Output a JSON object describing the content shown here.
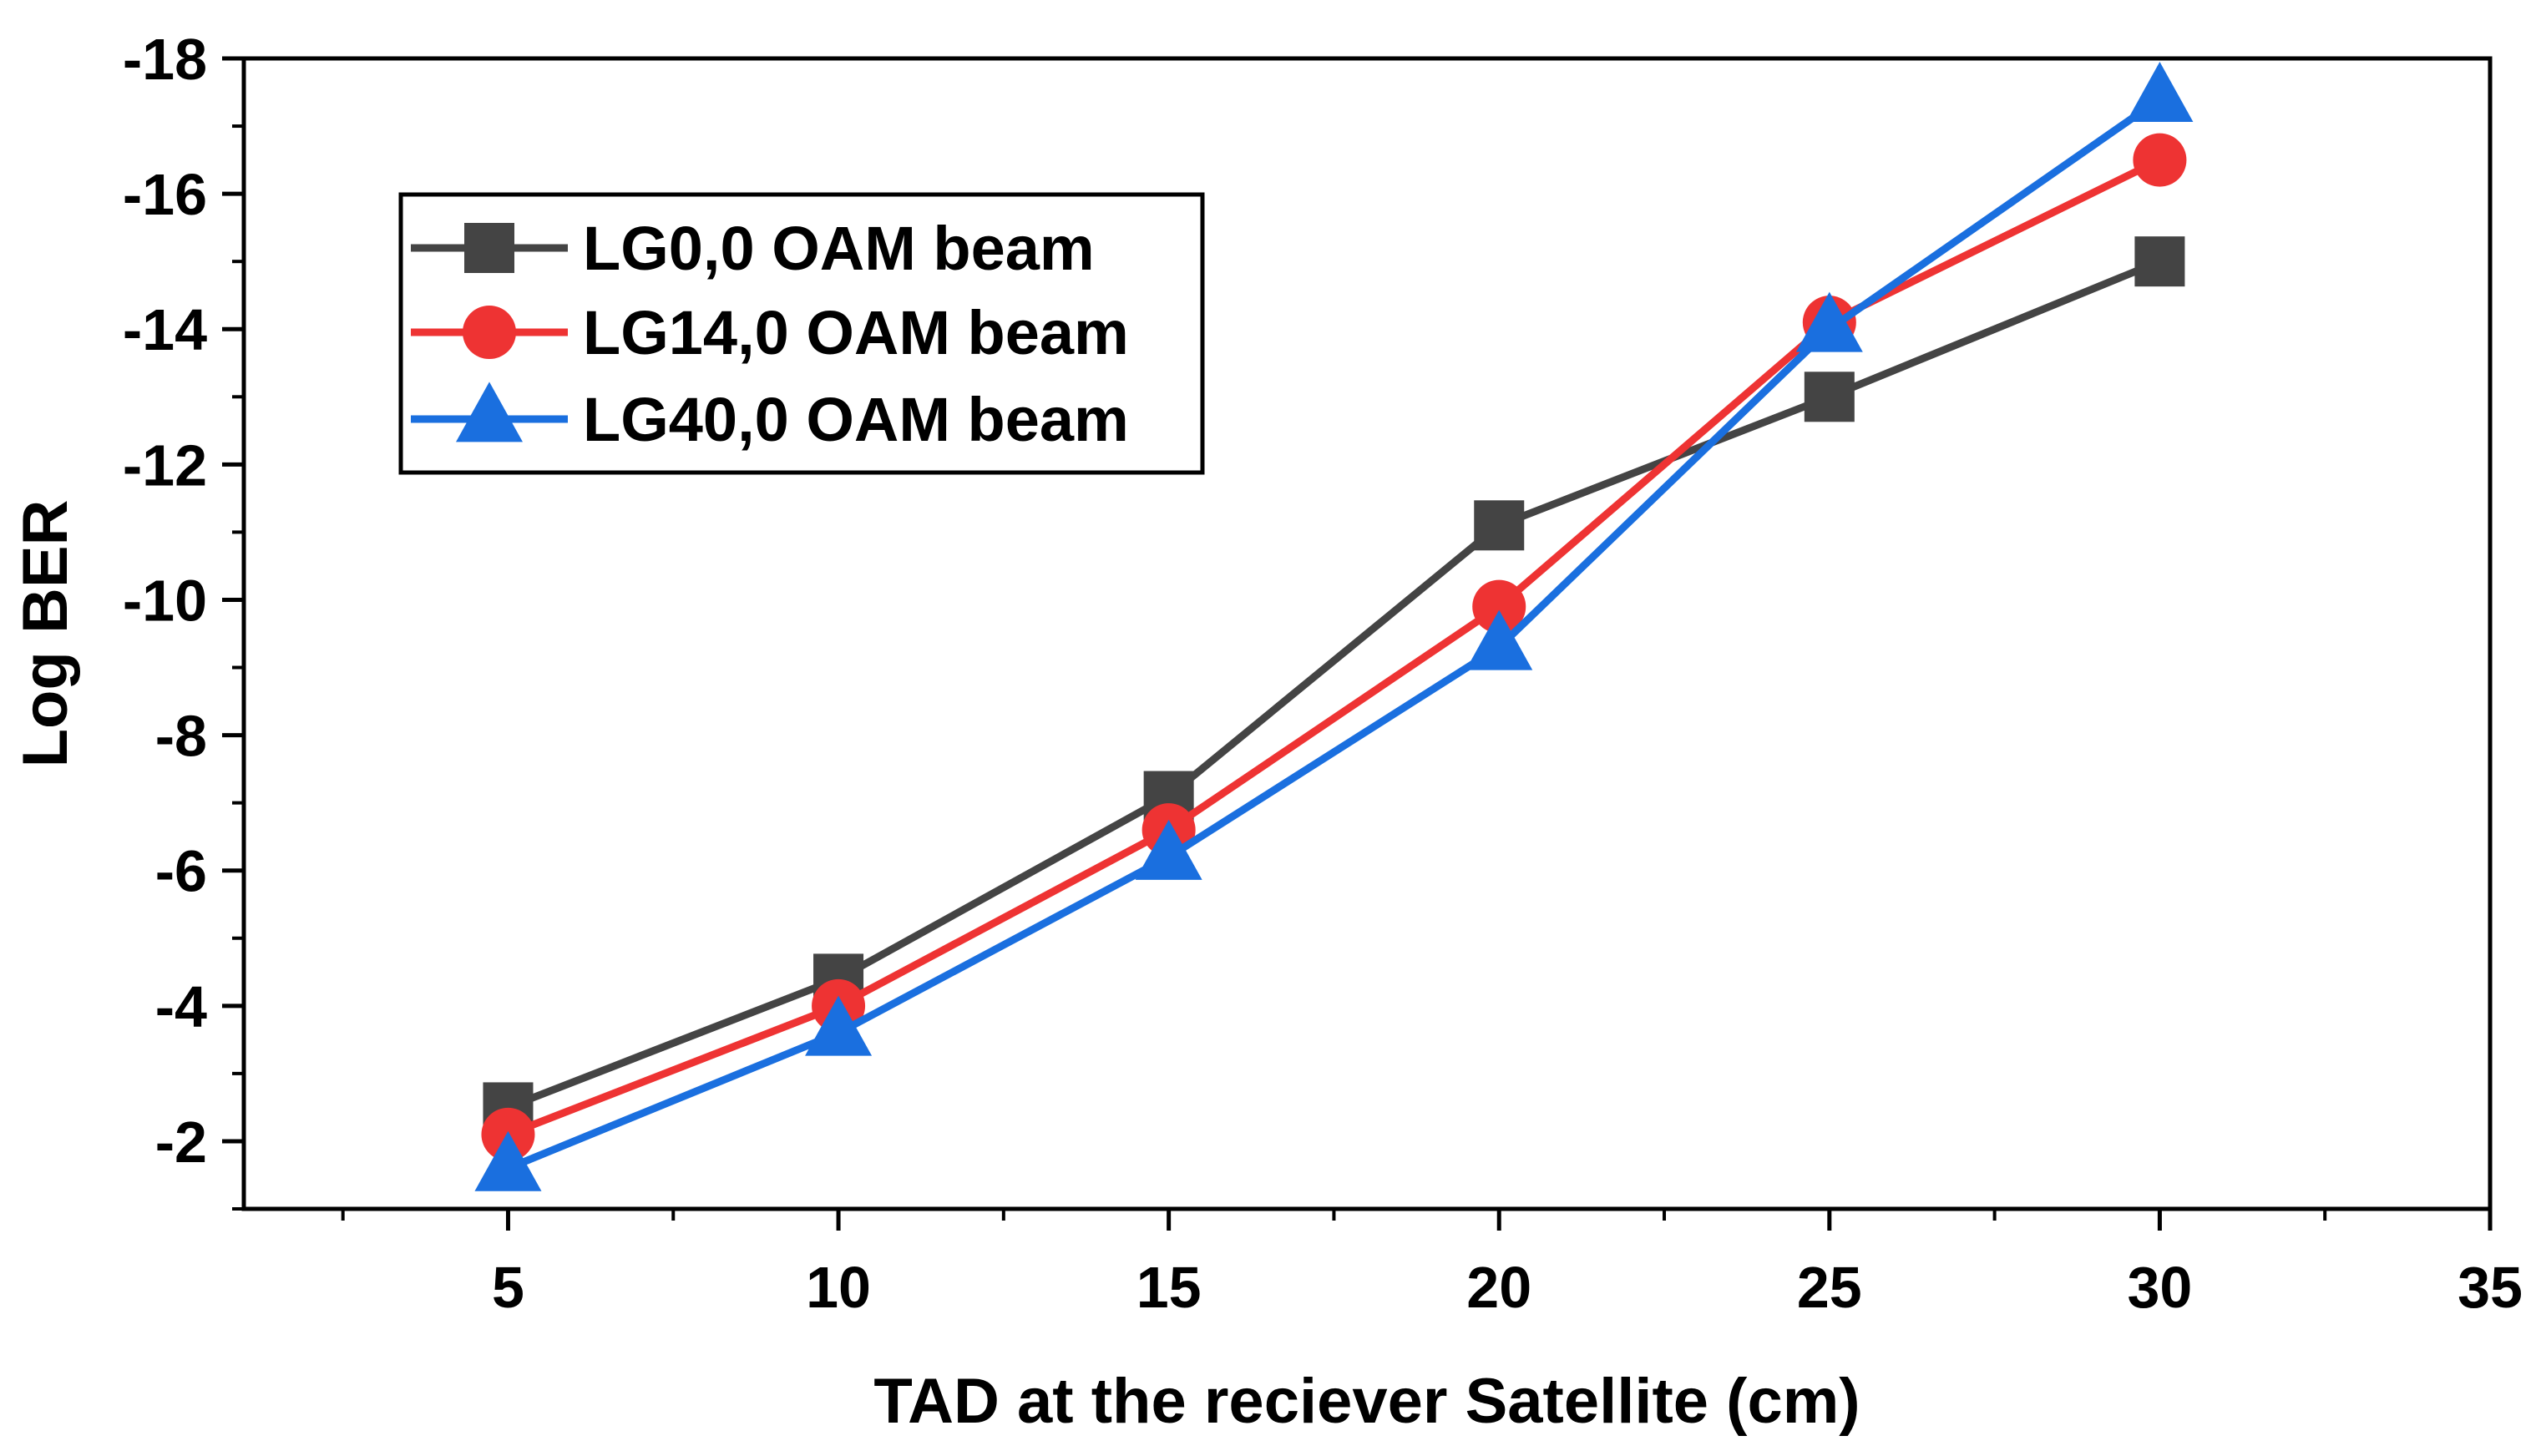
{
  "chart_data": {
    "type": "line",
    "title": "",
    "xlabel": "TAD  at the reciever Satellite (cm)",
    "ylabel": "Log BER",
    "xlim": [
      1,
      35
    ],
    "ylim": [
      -1,
      -18
    ],
    "x_ticks": [
      5,
      10,
      15,
      20,
      25,
      30,
      35
    ],
    "x_tick_labels": [
      "5",
      "10",
      "15",
      "20",
      "25",
      "30",
      "35"
    ],
    "y_ticks": [
      -2,
      -4,
      -6,
      -8,
      -10,
      -12,
      -14,
      -16,
      -18
    ],
    "y_tick_labels": [
      "-2",
      "-4",
      "-6",
      "-8",
      "-10",
      "-12",
      "-14",
      "-16",
      "-18"
    ],
    "grid": false,
    "legend_position": "top-left",
    "x": [
      5,
      10,
      15,
      20,
      25,
      30
    ],
    "series": [
      {
        "name": "LG0,0 OAM beam",
        "marker": "square",
        "color": "#444444",
        "values": [
          -2.5,
          -4.4,
          -7.1,
          -11.1,
          -13.0,
          -15.0
        ]
      },
      {
        "name": "LG14,0 OAM beam",
        "marker": "circle",
        "color": "#ee3333",
        "values": [
          -2.1,
          -4.0,
          -6.6,
          -9.9,
          -14.1,
          -16.5
        ]
      },
      {
        "name": "LG40,0 OAM beam",
        "marker": "triangle",
        "color": "#1a6fdf",
        "values": [
          -1.6,
          -3.6,
          -6.2,
          -9.3,
          -14.0,
          -17.4
        ]
      }
    ]
  }
}
